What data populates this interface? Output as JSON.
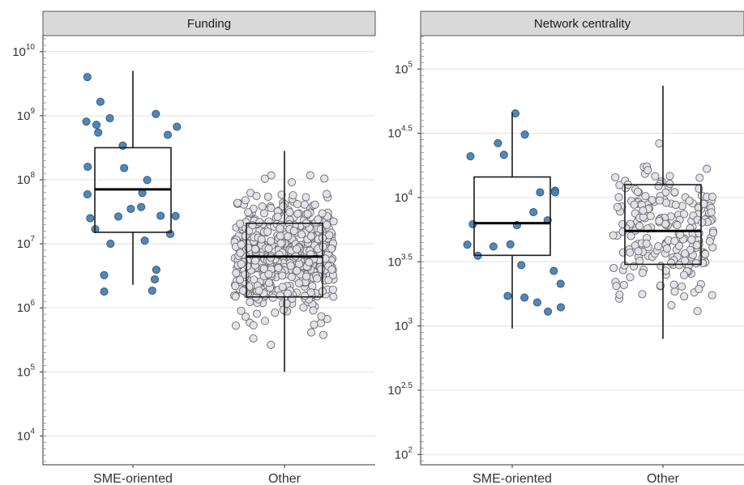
{
  "chart_data": [
    {
      "type": "box+jitter",
      "title": "Funding",
      "scale": "log10",
      "ylim_log10": [
        3.55,
        10.25
      ],
      "y_ticks_log10": [
        4,
        5,
        6,
        7,
        8,
        9,
        10
      ],
      "y_tick_labels": [
        {
          "base": "10",
          "exp": "4"
        },
        {
          "base": "10",
          "exp": "5"
        },
        {
          "base": "10",
          "exp": "6"
        },
        {
          "base": "10",
          "exp": "7"
        },
        {
          "base": "10",
          "exp": "8"
        },
        {
          "base": "10",
          "exp": "9"
        },
        {
          "base": "10",
          "exp": "10"
        }
      ],
      "categories": [
        "SME-oriented",
        "Other"
      ],
      "grid": true,
      "boxes": [
        {
          "category": "SME-oriented",
          "whisker_low": 6.36,
          "q1": 7.18,
          "median": 7.85,
          "q3": 8.5,
          "whisker_high": 9.7
        },
        {
          "category": "Other",
          "whisker_low": 5.0,
          "q1": 6.17,
          "median": 6.8,
          "q3": 7.32,
          "whisker_high": 8.45
        }
      ],
      "points": [
        {
          "category": "SME-oriented",
          "color": "#4a7fae",
          "n": 30,
          "log10_range": [
            6.14,
            9.72
          ],
          "seed": 11
        },
        {
          "category": "Other",
          "color": "#e2e2ea",
          "n": 560,
          "log10_range": [
            3.72,
            9.35
          ],
          "center": 6.8,
          "spread": 0.78,
          "seed": 29
        }
      ]
    },
    {
      "type": "box+jitter",
      "title": "Network centrality",
      "scale": "log10",
      "ylim_log10": [
        1.92,
        5.26
      ],
      "y_ticks_log10": [
        2,
        2.5,
        3,
        3.5,
        4,
        4.5,
        5
      ],
      "y_tick_labels": [
        {
          "base": "10",
          "exp": "2"
        },
        {
          "base": "10",
          "exp": "2.5"
        },
        {
          "base": "10",
          "exp": "3"
        },
        {
          "base": "10",
          "exp": "3.5"
        },
        {
          "base": "10",
          "exp": "4"
        },
        {
          "base": "10",
          "exp": "4.5"
        },
        {
          "base": "10",
          "exp": "5"
        }
      ],
      "categories": [
        "SME-oriented",
        "Other"
      ],
      "grid": true,
      "boxes": [
        {
          "category": "SME-oriented",
          "whisker_low": 2.98,
          "q1": 3.55,
          "median": 3.8,
          "q3": 4.16,
          "whisker_high": 4.66
        },
        {
          "category": "Other",
          "whisker_low": 2.9,
          "q1": 3.48,
          "median": 3.74,
          "q3": 4.1,
          "whisker_high": 4.87
        }
      ],
      "points": [
        {
          "category": "SME-oriented",
          "color": "#4a7fae",
          "n": 24,
          "log10_range": [
            3.03,
            4.7
          ],
          "seed": 7
        },
        {
          "category": "Other",
          "color": "#e2e2ea",
          "n": 220,
          "log10_range": [
            1.97,
            5.16
          ],
          "center": 3.75,
          "spread": 0.42,
          "seed": 43
        }
      ]
    }
  ],
  "colors": {
    "sme_point": "#4a7fae",
    "other_point": "#e2e2ea",
    "strip_fill": "#d9d9d9",
    "grid": "#e6e6e6"
  }
}
